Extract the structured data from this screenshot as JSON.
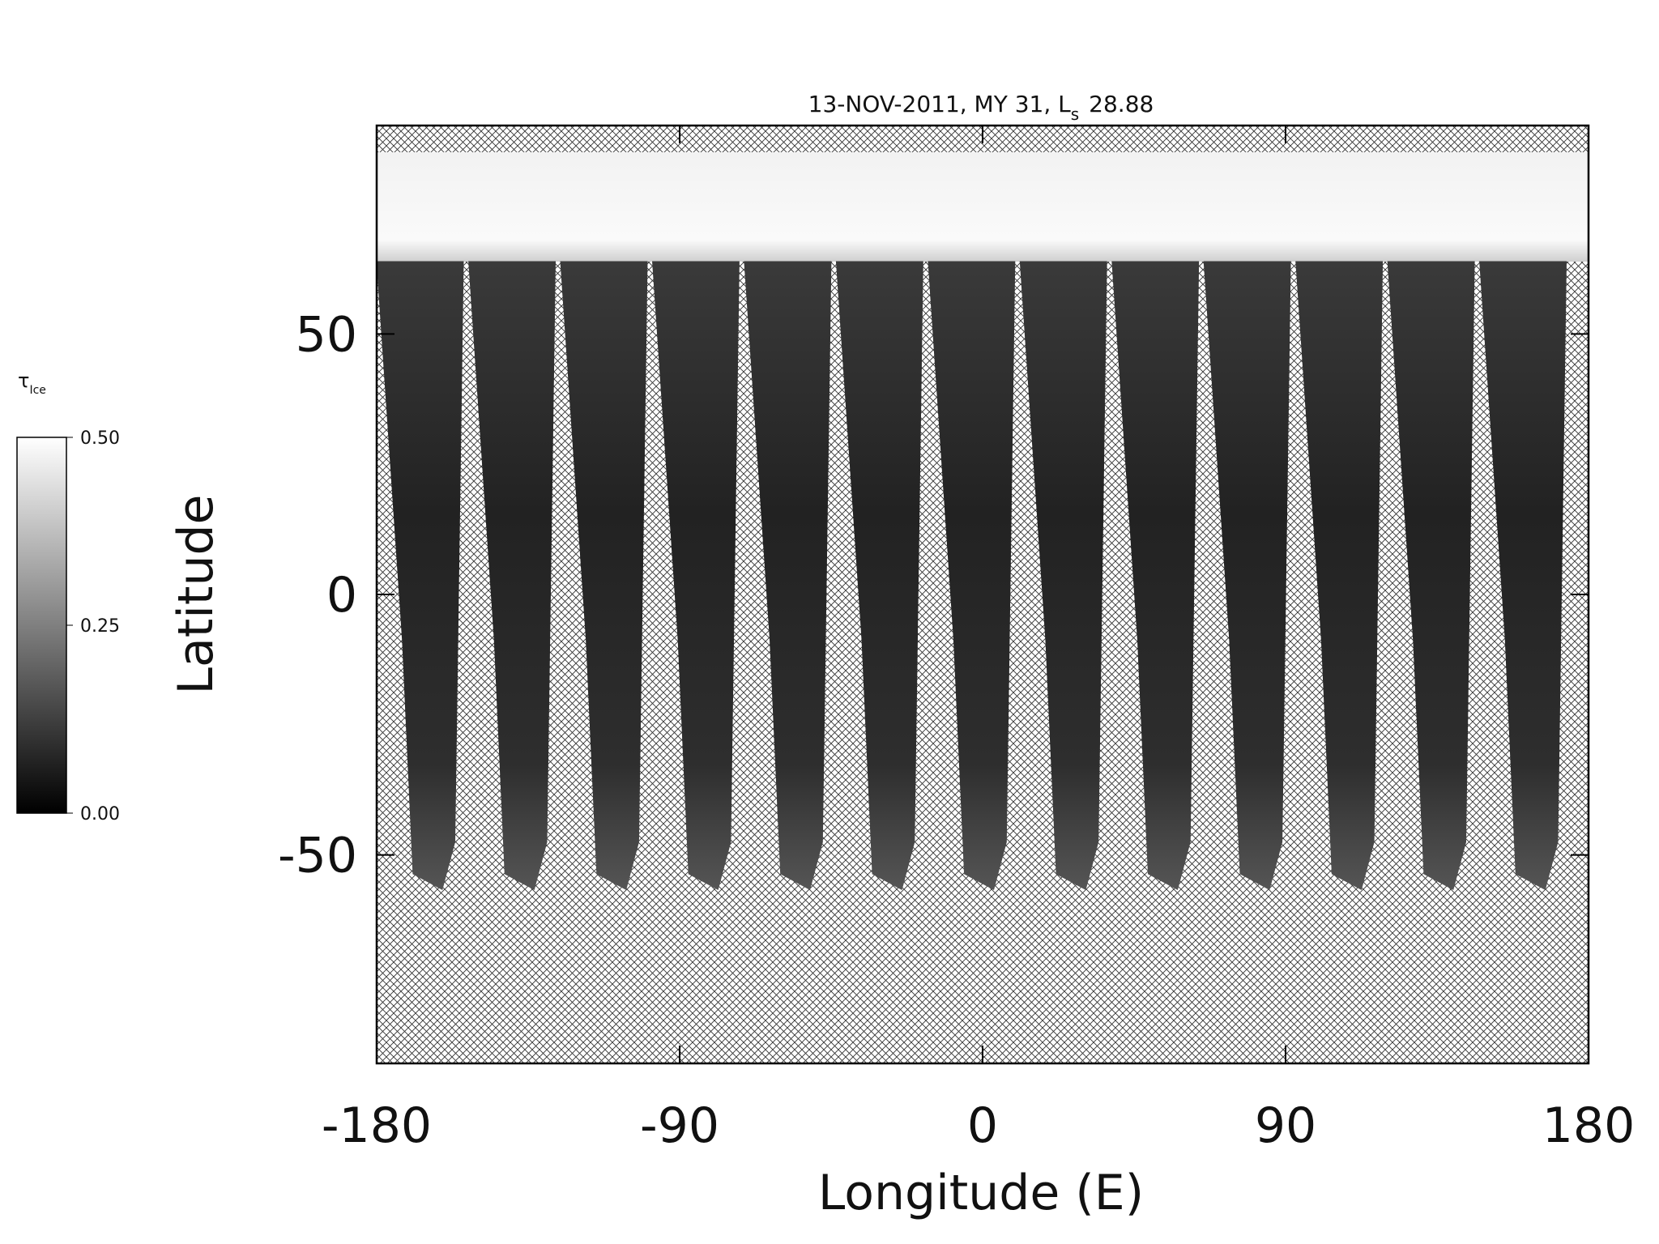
{
  "chart_data": {
    "type": "map",
    "title": "13-NOV-2011, MY 31,  L",
    "title_subscript": "s",
    "title_suffix": "28.88",
    "xlabel": "Longitude (E)",
    "ylabel": "Latitude",
    "xlim": [
      -180,
      180
    ],
    "xticks": [
      -180,
      -90,
      0,
      90,
      180
    ],
    "ylim": [
      -90,
      90
    ],
    "yticks": [
      -50,
      0,
      50
    ],
    "colorbar": {
      "symbol": "τ",
      "subscript": "Ice",
      "lim": [
        0,
        0.5
      ],
      "ticks": [
        {
          "value": 0.5,
          "label": "0.50"
        },
        {
          "value": 0.25,
          "label": "0.25"
        },
        {
          "value": 0,
          "label": "0.00"
        }
      ],
      "colors": [
        "#000000",
        "#ffffff"
      ]
    }
  }
}
